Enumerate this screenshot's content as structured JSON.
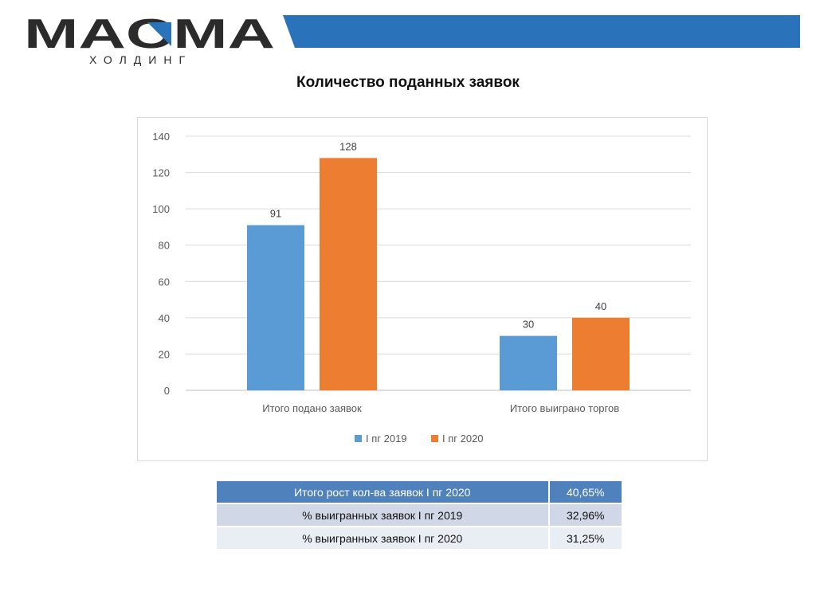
{
  "logo": {
    "name": "МАСМА",
    "subtitle": "ХОЛДИНГ"
  },
  "colors": {
    "band": "#2a72ba",
    "series1": "#5b9bd5",
    "series2": "#ed7d31",
    "logo_dark": "#2b2b2b"
  },
  "slide_title": "Количество поданных заявок",
  "chart_data": {
    "type": "bar",
    "title": "",
    "categories": [
      "Итого подано заявок",
      "Итого выиграно торгов"
    ],
    "series": [
      {
        "name": "I пг 2019",
        "values": [
          91,
          30
        ]
      },
      {
        "name": "I пг 2020",
        "values": [
          128,
          40
        ]
      }
    ],
    "ylim": [
      0,
      140
    ],
    "yticks": [
      0,
      20,
      40,
      60,
      80,
      100,
      120,
      140
    ],
    "grid": true,
    "legend": "bottom",
    "data_labels": true
  },
  "table": {
    "rows": [
      [
        "Итого рост кол-ва заявок I пг 2020",
        "40,65%"
      ],
      [
        "% выигранных заявок I пг 2019",
        "32,96%"
      ],
      [
        "% выигранных заявок I пг 2020",
        "31,25%"
      ]
    ]
  }
}
